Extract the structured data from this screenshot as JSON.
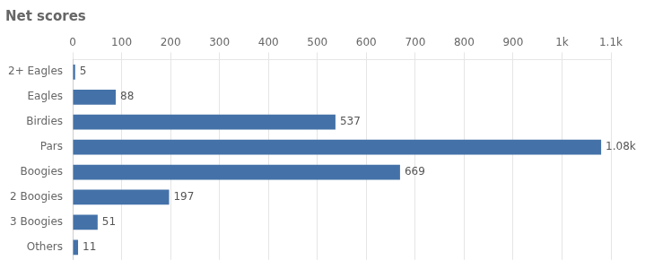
{
  "chart_data": {
    "type": "bar",
    "orientation": "horizontal",
    "title": "Net scores",
    "categories": [
      "2+ Eagles",
      "Eagles",
      "Birdies",
      "Pars",
      "Boogies",
      "2 Boogies",
      "3 Boogies",
      "Others"
    ],
    "values": [
      5,
      88,
      537,
      1080,
      669,
      197,
      51,
      11
    ],
    "value_labels": [
      "5",
      "88",
      "537",
      "1.08k",
      "669",
      "197",
      "51",
      "11"
    ],
    "data_labels": true,
    "color": "#4472a8",
    "xlim": [
      0,
      1100
    ],
    "xticks": [
      0,
      100,
      200,
      300,
      400,
      500,
      600,
      700,
      800,
      900,
      {
        "value": 1000,
        "label": "1k"
      },
      {
        "value": 1100,
        "label": "1.1k"
      }
    ],
    "grid": true
  }
}
